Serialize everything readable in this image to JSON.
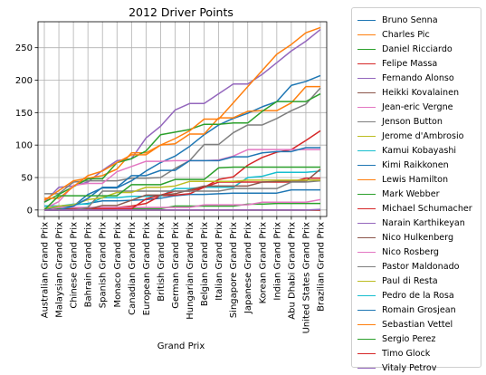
{
  "chart_data": {
    "type": "line",
    "title": "2012 Driver Points",
    "xlabel": "Grand Prix",
    "ylabel": "",
    "ylim": [
      -10,
      290
    ],
    "yticks": [
      0,
      50,
      100,
      150,
      200,
      250
    ],
    "grid": true,
    "legend_position": "outside right",
    "categories": [
      "Australian Grand Prix",
      "Malaysian Grand Prix",
      "Chinese Grand Prix",
      "Bahrain Grand Prix",
      "Spanish Grand Prix",
      "Monaco Grand Prix",
      "Canadian Grand Prix",
      "European Grand Prix",
      "British Grand Prix",
      "German Grand Prix",
      "Hungarian Grand Prix",
      "Belgian Grand Prix",
      "Italian Grand Prix",
      "Singapore Grand Prix",
      "Japanese Grand Prix",
      "Korean Grand Prix",
      "Indian Grand Prix",
      "Abu Dhabi Grand Prix",
      "United States Grand Prix",
      "Brazilian Grand Prix"
    ],
    "series": [
      {
        "name": "Bruno Senna",
        "color": "#1f77b4",
        "values": [
          6,
          6,
          8,
          10,
          14,
          14,
          15,
          16,
          18,
          22,
          24,
          24,
          25,
          26,
          26,
          26,
          26,
          31,
          31,
          31
        ]
      },
      {
        "name": "Charles Pic",
        "color": "#ff7f0e",
        "values": [
          0,
          0,
          0,
          0,
          0,
          0,
          0,
          0,
          0,
          0,
          0,
          0,
          0,
          0,
          0,
          0,
          0,
          0,
          0,
          0
        ]
      },
      {
        "name": "Daniel Ricciardo",
        "color": "#2ca02c",
        "values": [
          2,
          2,
          2,
          2,
          2,
          2,
          2,
          2,
          2,
          6,
          6,
          6,
          6,
          6,
          9,
          9,
          10,
          10,
          10,
          10
        ]
      },
      {
        "name": "Felipe Massa",
        "color": "#d62728",
        "values": [
          0,
          0,
          2,
          2,
          2,
          4,
          6,
          10,
          22,
          23,
          25,
          35,
          47,
          51,
          69,
          81,
          89,
          93,
          107,
          122
        ]
      },
      {
        "name": "Fernando Alonso",
        "color": "#9467bd",
        "values": [
          12,
          35,
          37,
          43,
          61,
          76,
          79,
          111,
          129,
          154,
          164,
          164,
          179,
          194,
          194,
          209,
          227,
          245,
          260,
          278
        ]
      },
      {
        "name": "Heikki Kovalainen",
        "color": "#8c564b",
        "values": [
          0,
          0,
          0,
          0,
          0,
          0,
          0,
          0,
          0,
          0,
          0,
          0,
          0,
          0,
          0,
          0,
          0,
          0,
          0,
          0
        ]
      },
      {
        "name": "Jean-eric Vergne",
        "color": "#e377c2",
        "values": [
          0,
          4,
          4,
          4,
          4,
          4,
          4,
          4,
          4,
          4,
          4,
          8,
          8,
          8,
          8,
          12,
          12,
          12,
          12,
          16
        ]
      },
      {
        "name": "Jenson Button",
        "color": "#7f7f7f",
        "values": [
          25,
          25,
          43,
          45,
          45,
          45,
          49,
          49,
          50,
          64,
          76,
          101,
          101,
          119,
          131,
          131,
          141,
          153,
          163,
          188
        ]
      },
      {
        "name": "Jerome d'Ambrosio",
        "color": "#bcbd22",
        "values": [
          0,
          0,
          0,
          0,
          0,
          0,
          0,
          0,
          0,
          0,
          0,
          0,
          0,
          0,
          0,
          0,
          0,
          0,
          0,
          0
        ]
      },
      {
        "name": "Kamui Kobayashi",
        "color": "#17becf",
        "values": [
          6,
          6,
          9,
          9,
          19,
          19,
          21,
          21,
          21,
          33,
          33,
          35,
          35,
          35,
          50,
          52,
          58,
          58,
          58,
          60
        ]
      },
      {
        "name": "Kimi Raikkonen",
        "color": "#1f77b4",
        "values": [
          0,
          6,
          6,
          24,
          34,
          34,
          45,
          60,
          73,
          83,
          98,
          116,
          131,
          141,
          149,
          159,
          167,
          192,
          198,
          207
        ]
      },
      {
        "name": "Lewis Hamilton",
        "color": "#ff7f0e",
        "values": [
          15,
          30,
          45,
          49,
          53,
          63,
          88,
          88,
          100,
          102,
          117,
          117,
          142,
          142,
          152,
          153,
          153,
          165,
          190,
          190
        ]
      },
      {
        "name": "Mark Webber",
        "color": "#2ca02c",
        "values": [
          12,
          24,
          36,
          48,
          48,
          73,
          79,
          91,
          116,
          120,
          124,
          132,
          132,
          134,
          134,
          152,
          167,
          167,
          167,
          179
        ]
      },
      {
        "name": "Michael Schumacher",
        "color": "#d62728",
        "values": [
          0,
          0,
          0,
          2,
          2,
          2,
          2,
          17,
          23,
          29,
          29,
          35,
          43,
          43,
          43,
          43,
          43,
          43,
          49,
          49
        ]
      },
      {
        "name": "Narain Karthikeyan",
        "color": "#9467bd",
        "values": [
          0,
          0,
          0,
          0,
          0,
          0,
          0,
          0,
          0,
          0,
          0,
          0,
          0,
          0,
          0,
          0,
          0,
          0,
          0,
          0
        ]
      },
      {
        "name": "Nico Hulkenberg",
        "color": "#8c564b",
        "values": [
          0,
          0,
          1,
          1,
          7,
          7,
          15,
          23,
          23,
          25,
          31,
          37,
          37,
          37,
          37,
          43,
          44,
          44,
          44,
          63
        ]
      },
      {
        "name": "Nico Rosberg",
        "color": "#e377c2",
        "values": [
          2,
          13,
          38,
          41,
          41,
          59,
          67,
          75,
          75,
          76,
          76,
          76,
          77,
          83,
          93,
          93,
          93,
          93,
          93,
          93
        ]
      },
      {
        "name": "Pastor Maldonado",
        "color": "#7f7f7f",
        "values": [
          0,
          0,
          0,
          4,
          29,
          29,
          29,
          29,
          29,
          29,
          29,
          29,
          29,
          33,
          33,
          33,
          33,
          43,
          43,
          45
        ]
      },
      {
        "name": "Paul di Resta",
        "color": "#bcbd22",
        "values": [
          2,
          6,
          8,
          16,
          19,
          27,
          27,
          35,
          35,
          37,
          44,
          44,
          44,
          44,
          46,
          46,
          46,
          46,
          46,
          46
        ]
      },
      {
        "name": "Pedro de la Rosa",
        "color": "#17becf",
        "values": [
          0,
          0,
          0,
          0,
          0,
          0,
          0,
          0,
          0,
          0,
          0,
          0,
          0,
          0,
          0,
          0,
          0,
          0,
          0,
          0
        ]
      },
      {
        "name": "Romain Grosjean",
        "color": "#1f77b4",
        "values": [
          0,
          0,
          6,
          18,
          35,
          35,
          53,
          53,
          61,
          61,
          76,
          76,
          76,
          82,
          82,
          88,
          90,
          90,
          96,
          96
        ]
      },
      {
        "name": "Sebastian Vettel",
        "color": "#ff7f0e",
        "values": [
          18,
          18,
          36,
          53,
          60,
          73,
          85,
          85,
          100,
          110,
          122,
          140,
          140,
          165,
          190,
          215,
          240,
          255,
          273,
          281
        ]
      },
      {
        "name": "Sergio Perez",
        "color": "#2ca02c",
        "values": [
          0,
          22,
          22,
          22,
          22,
          22,
          39,
          39,
          39,
          47,
          47,
          47,
          65,
          66,
          66,
          66,
          66,
          66,
          66,
          66
        ]
      },
      {
        "name": "Timo Glock",
        "color": "#d62728",
        "values": [
          0,
          0,
          0,
          0,
          0,
          0,
          0,
          0,
          0,
          0,
          0,
          0,
          0,
          0,
          0,
          0,
          0,
          0,
          0,
          0
        ]
      },
      {
        "name": "Vitaly Petrov",
        "color": "#9467bd",
        "values": [
          0,
          0,
          0,
          0,
          0,
          0,
          0,
          0,
          0,
          0,
          0,
          0,
          0,
          0,
          0,
          0,
          0,
          0,
          0,
          1
        ]
      }
    ]
  }
}
